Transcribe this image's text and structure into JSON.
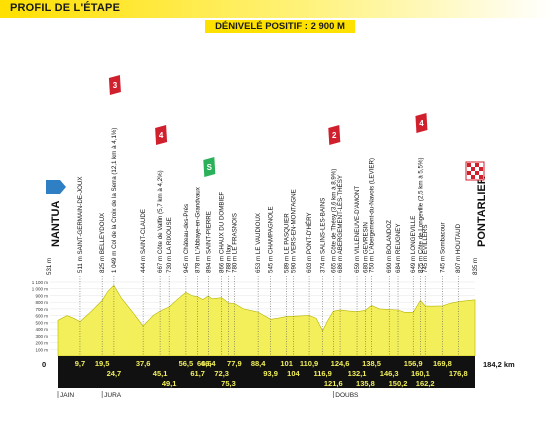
{
  "header": {
    "title": "PROFIL DE L'ÉTAPE",
    "elevation_gain": "DÉNIVELÉ POSITIF : 2 900 M"
  },
  "start": {
    "name": "NANTUA",
    "altitude": "531 m",
    "km": "0"
  },
  "finish": {
    "name": "PONTARLIER",
    "altitude": "835 m",
    "km": "184,2 km"
  },
  "axis": {
    "y_ticks": [
      "1 100 m",
      "1 000 m",
      "900 m",
      "800 m",
      "700 m",
      "600 m",
      "500 m",
      "400 m",
      "300 m",
      "200 m",
      "100 m"
    ]
  },
  "colors": {
    "fill": "#f2ef5a",
    "band": "#111111",
    "climb": "#d0202e",
    "sprint": "#2bb15a",
    "start_flag": "#2f7fc4"
  },
  "chart_data": {
    "type": "area",
    "xlabel": "",
    "ylabel": "",
    "x_range": [
      0,
      184.2
    ],
    "y_range": [
      0,
      1100
    ],
    "profile": [
      [
        0,
        531
      ],
      [
        4,
        600
      ],
      [
        7,
        560
      ],
      [
        9.7,
        511
      ],
      [
        14,
        640
      ],
      [
        19.5,
        825
      ],
      [
        22,
        960
      ],
      [
        24.7,
        1049
      ],
      [
        28,
        860
      ],
      [
        33,
        650
      ],
      [
        37.6,
        444
      ],
      [
        42,
        600
      ],
      [
        45.1,
        667
      ],
      [
        49.1,
        730
      ],
      [
        53,
        850
      ],
      [
        56.5,
        945
      ],
      [
        59,
        900
      ],
      [
        61.7,
        878
      ],
      [
        64,
        840
      ],
      [
        66.4,
        894
      ],
      [
        68,
        850
      ],
      [
        72.3,
        866
      ],
      [
        75.3,
        788
      ],
      [
        77.9,
        780
      ],
      [
        82,
        700
      ],
      [
        88.4,
        653
      ],
      [
        93.9,
        545
      ],
      [
        97,
        560
      ],
      [
        101,
        589
      ],
      [
        104,
        590
      ],
      [
        110.9,
        603
      ],
      [
        114,
        560
      ],
      [
        116.9,
        374
      ],
      [
        119,
        520
      ],
      [
        121.6,
        665
      ],
      [
        124.6,
        686
      ],
      [
        128,
        670
      ],
      [
        132.1,
        659
      ],
      [
        135.8,
        680
      ],
      [
        138.5,
        750
      ],
      [
        142,
        700
      ],
      [
        146.3,
        690
      ],
      [
        150.2,
        684
      ],
      [
        153,
        650
      ],
      [
        156.9,
        649
      ],
      [
        160.1,
        825
      ],
      [
        162.2,
        745
      ],
      [
        165,
        740
      ],
      [
        169.8,
        745
      ],
      [
        173,
        780
      ],
      [
        176.8,
        807
      ],
      [
        180,
        820
      ],
      [
        184.2,
        835
      ]
    ],
    "km_marks": {
      "row1": [
        "9,7",
        "19,5",
        "37,6",
        "56,5",
        "64,6",
        "66,4",
        "77,9",
        "88,4",
        "101",
        "110,9",
        "124,6",
        "138,5",
        "156,9",
        "169,8"
      ],
      "row1_x": [
        9.7,
        19.5,
        37.6,
        56.5,
        64.6,
        66.4,
        77.9,
        88.4,
        101,
        110.9,
        124.6,
        138.5,
        156.9,
        169.8
      ],
      "row2": [
        "24,7",
        "45,1",
        "61,7",
        "72,3",
        "93,9",
        "104",
        "116,9",
        "132,1",
        "146,3",
        "160,1",
        "176,8"
      ],
      "row2_x": [
        24.7,
        45.1,
        61.7,
        72.3,
        93.9,
        104,
        116.9,
        132.1,
        146.3,
        160.1,
        176.8
      ],
      "row3": [
        "49,1",
        "75,3",
        "121,6",
        "135,8",
        "150,2",
        "162,2"
      ],
      "row3_x": [
        49.1,
        75.3,
        121.6,
        135.8,
        150.2,
        162.2
      ]
    },
    "waypoints": [
      {
        "km": 9.7,
        "text": "511 m SAINT-GERMAIN-DE-JOUX"
      },
      {
        "km": 19.5,
        "text": "825 m BELLEYDOUX"
      },
      {
        "km": 24.7,
        "text": "1 049 m Col de la Croix de la Serra (12,1 km à 4,1%)"
      },
      {
        "km": 37.6,
        "text": "444 m SAINT-CLAUDE"
      },
      {
        "km": 45.1,
        "text": "667 m Côte de Valfin (5,7 km à 4,2%)"
      },
      {
        "km": 49.1,
        "text": "730 m LA RIXOUSE"
      },
      {
        "km": 56.5,
        "text": "945 m Château-des-Prés"
      },
      {
        "km": 61.7,
        "text": "878 m L'Abbaye-en-Grandvaux"
      },
      {
        "km": 66.4,
        "text": "894 m SAINT-PIERRE"
      },
      {
        "km": 72.3,
        "text": "866 m CHAUX DU DOMBIEF"
      },
      {
        "km": 75.3,
        "text": "788 m Ilay"
      },
      {
        "km": 77.9,
        "text": "780 m LE FRASNOIS"
      },
      {
        "km": 88.4,
        "text": "653 m LE VAUDIOUX"
      },
      {
        "km": 93.9,
        "text": "545 m CHAMPAGNOLE"
      },
      {
        "km": 101,
        "text": "589 m LE PASQUIER"
      },
      {
        "km": 104,
        "text": "590 m VERS-EN-MONTAGNE"
      },
      {
        "km": 110.9,
        "text": "603 m PONT-D'HÉRY"
      },
      {
        "km": 116.9,
        "text": "374 m SALINS-LES-BAINS"
      },
      {
        "km": 121.6,
        "text": "665 m Côte de Thésy (3,6 km à 8,9%)"
      },
      {
        "km": 124.6,
        "text": "686 m ABERGEMENT-LÈS-THÉSY"
      },
      {
        "km": 132.1,
        "text": "659 m VILLENEUVE-D'AMONT"
      },
      {
        "km": 135.8,
        "text": "680 m GEVRESIN"
      },
      {
        "km": 138.5,
        "text": "750 m L'Abergement-du-Navois (LEVIER)"
      },
      {
        "km": 146.3,
        "text": "690 m BOLANDOZ"
      },
      {
        "km": 150.2,
        "text": "684 m REUGNEY"
      },
      {
        "km": 156.9,
        "text": "649 m LONGEVILLE"
      },
      {
        "km": 160.1,
        "text": "825 m Côte de Longeville (2,5 km à 5,5%)"
      },
      {
        "km": 162.2,
        "text": "745 m EVILLERS"
      },
      {
        "km": 169.8,
        "text": "745 m Sombacour"
      },
      {
        "km": 176.8,
        "text": "807 m HOUTAUD"
      }
    ],
    "markers": [
      {
        "km": 24.7,
        "type": "climb",
        "label": "3"
      },
      {
        "km": 45.1,
        "type": "climb",
        "label": "4"
      },
      {
        "km": 66.4,
        "type": "sprint",
        "label": "S"
      },
      {
        "km": 121.6,
        "type": "climb",
        "label": "2"
      },
      {
        "km": 160.1,
        "type": "climb",
        "label": "4"
      }
    ],
    "regions": [
      {
        "km": 0,
        "label": "JAIN"
      },
      {
        "km": 19.5,
        "label": "JURA"
      },
      {
        "km": 121.6,
        "label": "DOUBS"
      }
    ]
  }
}
